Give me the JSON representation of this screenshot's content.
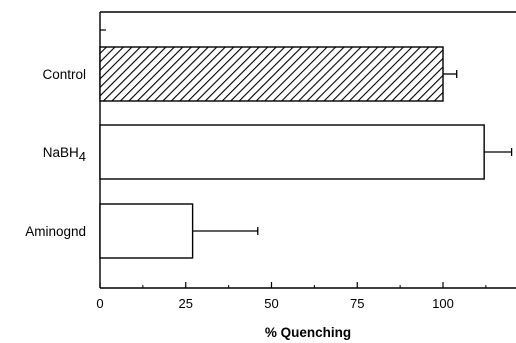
{
  "chart_data": {
    "type": "bar",
    "orientation": "horizontal",
    "categories": [
      "Control",
      "NaBH4",
      "Aminognd"
    ],
    "category_labels": [
      {
        "main": "Control",
        "sub": ""
      },
      {
        "main": "NaBH",
        "sub": "4"
      },
      {
        "main": "Aminognd",
        "sub": ""
      }
    ],
    "values": [
      100,
      112,
      27
    ],
    "error_plus": [
      4,
      8,
      19
    ],
    "bar_fills": [
      "hatched",
      "white",
      "white"
    ],
    "xlabel": "% Quenching",
    "xlim": [
      0,
      122
    ],
    "xticks": [
      0,
      25,
      50,
      75,
      100
    ],
    "xtick_labels": [
      "0",
      "25",
      "50",
      "75",
      "100"
    ],
    "grid": false,
    "colors": {
      "stroke": "#000000",
      "fill": "#ffffff"
    }
  }
}
